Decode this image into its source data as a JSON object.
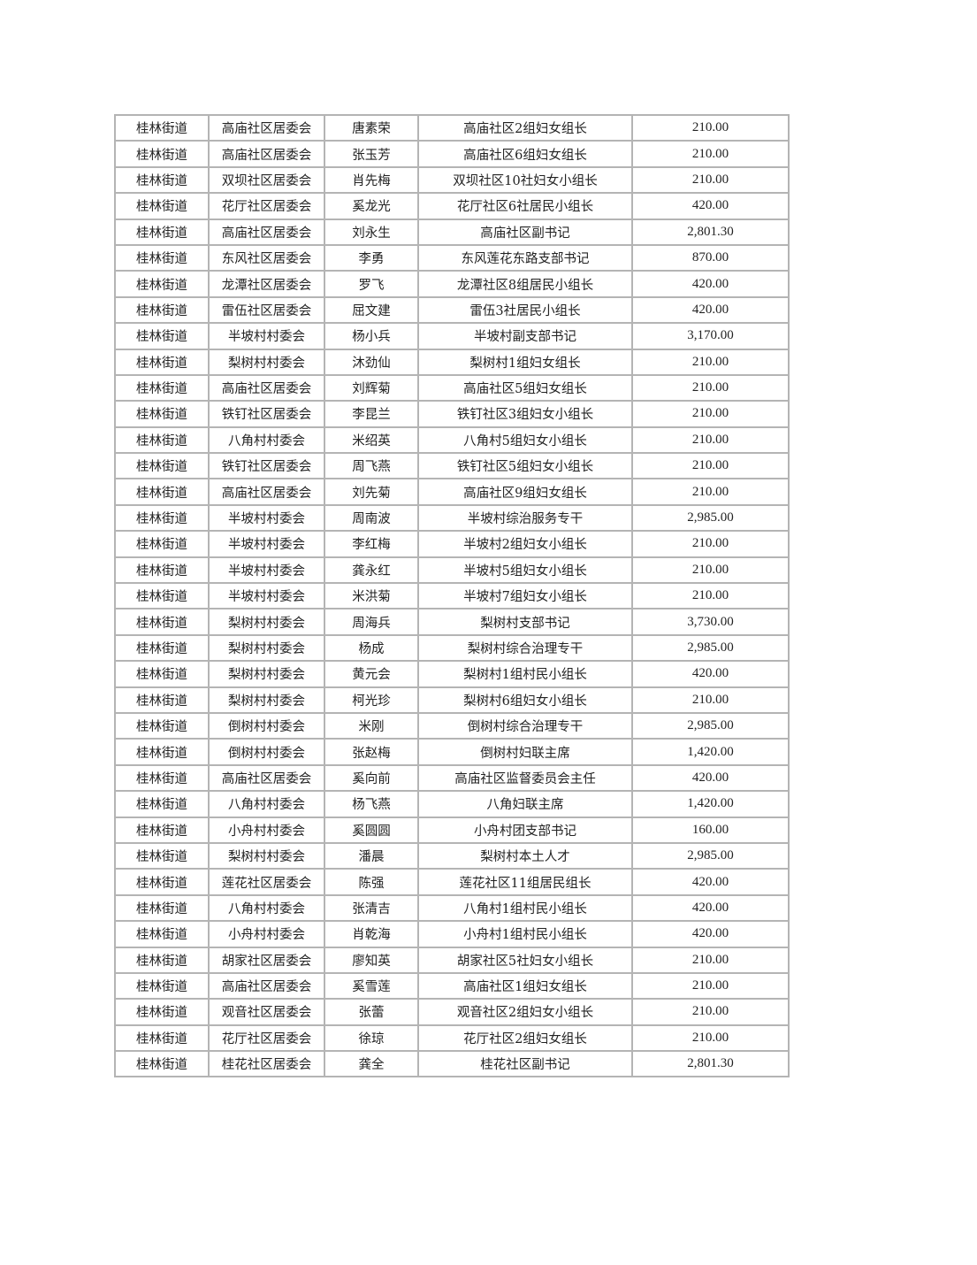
{
  "table": {
    "rows": [
      [
        "桂林街道",
        "高庙社区居委会",
        "唐素荣",
        "高庙社区2组妇女组长",
        "210.00"
      ],
      [
        "桂林街道",
        "高庙社区居委会",
        "张玉芳",
        "高庙社区6组妇女组长",
        "210.00"
      ],
      [
        "桂林街道",
        "双坝社区居委会",
        "肖先梅",
        "双坝社区10社妇女小组长",
        "210.00"
      ],
      [
        "桂林街道",
        "花厅社区居委会",
        "奚龙光",
        "花厅社区6社居民小组长",
        "420.00"
      ],
      [
        "桂林街道",
        "高庙社区居委会",
        "刘永生",
        "高庙社区副书记",
        "2,801.30"
      ],
      [
        "桂林街道",
        "东风社区居委会",
        "李勇",
        "东风莲花东路支部书记",
        "870.00"
      ],
      [
        "桂林街道",
        "龙潭社区居委会",
        "罗飞",
        "龙潭社区8组居民小组长",
        "420.00"
      ],
      [
        "桂林街道",
        "雷伍社区居委会",
        "屈文建",
        "雷伍3社居民小组长",
        "420.00"
      ],
      [
        "桂林街道",
        "半坡村村委会",
        "杨小兵",
        "半坡村副支部书记",
        "3,170.00"
      ],
      [
        "桂林街道",
        "梨树村村委会",
        "沐劲仙",
        "梨树村1组妇女组长",
        "210.00"
      ],
      [
        "桂林街道",
        "高庙社区居委会",
        "刘辉菊",
        "高庙社区5组妇女组长",
        "210.00"
      ],
      [
        "桂林街道",
        "铁钉社区居委会",
        "李昆兰",
        "铁钉社区3组妇女小组长",
        "210.00"
      ],
      [
        "桂林街道",
        "八角村村委会",
        "米绍英",
        "八角村5组妇女小组长",
        "210.00"
      ],
      [
        "桂林街道",
        "铁钉社区居委会",
        "周飞燕",
        "铁钉社区5组妇女小组长",
        "210.00"
      ],
      [
        "桂林街道",
        "高庙社区居委会",
        "刘先菊",
        "高庙社区9组妇女组长",
        "210.00"
      ],
      [
        "桂林街道",
        "半坡村村委会",
        "周南波",
        "半坡村综治服务专干",
        "2,985.00"
      ],
      [
        "桂林街道",
        "半坡村村委会",
        "李红梅",
        "半坡村2组妇女小组长",
        "210.00"
      ],
      [
        "桂林街道",
        "半坡村村委会",
        "龚永红",
        "半坡村5组妇女小组长",
        "210.00"
      ],
      [
        "桂林街道",
        "半坡村村委会",
        "米洪菊",
        "半坡村7组妇女小组长",
        "210.00"
      ],
      [
        "桂林街道",
        "梨树村村委会",
        "周海兵",
        "梨树村支部书记",
        "3,730.00"
      ],
      [
        "桂林街道",
        "梨树村村委会",
        "杨成",
        "梨树村综合治理专干",
        "2,985.00"
      ],
      [
        "桂林街道",
        "梨树村村委会",
        "黄元会",
        "梨树村1组村民小组长",
        "420.00"
      ],
      [
        "桂林街道",
        "梨树村村委会",
        "柯光珍",
        "梨树村6组妇女小组长",
        "210.00"
      ],
      [
        "桂林街道",
        "倒树村村委会",
        "米刚",
        "倒树村综合治理专干",
        "2,985.00"
      ],
      [
        "桂林街道",
        "倒树村村委会",
        "张赵梅",
        "倒树村妇联主席",
        "1,420.00"
      ],
      [
        "桂林街道",
        "高庙社区居委会",
        "奚向前",
        "高庙社区监督委员会主任",
        "420.00"
      ],
      [
        "桂林街道",
        "八角村村委会",
        "杨飞燕",
        "八角妇联主席",
        "1,420.00"
      ],
      [
        "桂林街道",
        "小舟村村委会",
        "奚圆圆",
        "小舟村团支部书记",
        "160.00"
      ],
      [
        "桂林街道",
        "梨树村村委会",
        "潘晨",
        "梨树村本土人才",
        "2,985.00"
      ],
      [
        "桂林街道",
        "莲花社区居委会",
        "陈强",
        "莲花社区11组居民组长",
        "420.00"
      ],
      [
        "桂林街道",
        "八角村村委会",
        "张清吉",
        "八角村1组村民小组长",
        "420.00"
      ],
      [
        "桂林街道",
        "小舟村村委会",
        "肖乾海",
        "小舟村1组村民小组长",
        "420.00"
      ],
      [
        "桂林街道",
        "胡家社区居委会",
        "廖知英",
        "胡家社区5社妇女小组长",
        "210.00"
      ],
      [
        "桂林街道",
        "高庙社区居委会",
        "奚雪莲",
        "高庙社区1组妇女组长",
        "210.00"
      ],
      [
        "桂林街道",
        "观音社区居委会",
        "张蕾",
        "观音社区2组妇女小组长",
        "210.00"
      ],
      [
        "桂林街道",
        "花厅社区居委会",
        "徐琼",
        "花厅社区2组妇女组长",
        "210.00"
      ],
      [
        "桂林街道",
        "桂花社区居委会",
        "龚全",
        "桂花社区副书记",
        "2,801.30"
      ]
    ]
  }
}
